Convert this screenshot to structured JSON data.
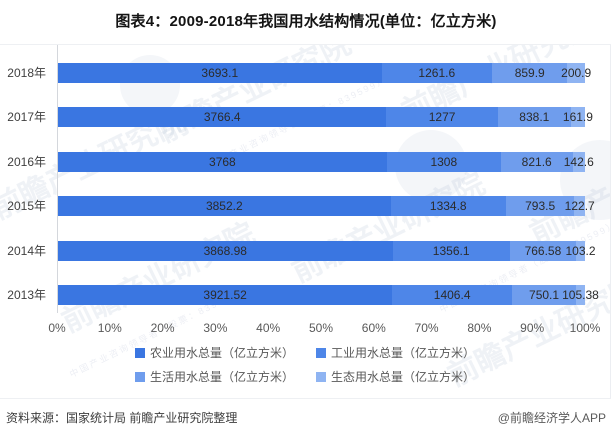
{
  "title": "图表4：2009-2018年我国用水结构情况(单位：亿立方米)",
  "chart_data": {
    "type": "bar",
    "orientation": "horizontal",
    "stacked": true,
    "percent_stacked": true,
    "unit": "亿立方米",
    "categories": [
      "2018年",
      "2017年",
      "2016年",
      "2015年",
      "2014年",
      "2013年"
    ],
    "series": [
      {
        "name": "农业用水总量（亿立方米）",
        "color": "#3a76e1",
        "values": [
          3693.1,
          3766.4,
          3768,
          3852.2,
          3868.98,
          3921.52
        ]
      },
      {
        "name": "工业用水总量（亿立方米）",
        "color": "#4e86e8",
        "values": [
          1261.6,
          1277,
          1308,
          1334.8,
          1356.1,
          1406.4
        ]
      },
      {
        "name": "生活用水总量（亿立方米）",
        "color": "#6f9ded",
        "values": [
          859.9,
          838.1,
          821.6,
          793.5,
          766.58,
          750.1
        ]
      },
      {
        "name": "生态用水总量（亿立方米）",
        "color": "#8fb4f2",
        "values": [
          200.9,
          161.9,
          142.6,
          122.7,
          103.2,
          105.38
        ]
      }
    ],
    "x_ticks": [
      "0%",
      "10%",
      "20%",
      "30%",
      "40%",
      "50%",
      "60%",
      "70%",
      "80%",
      "90%",
      "100%"
    ],
    "x_range": [
      0,
      100
    ],
    "grid": false,
    "legend_position": "bottom",
    "value_labels": "inside-center"
  },
  "watermark": {
    "main": "前瞻产业研究院",
    "sub": "中国产业咨询领导者（股票：839599）"
  },
  "footer": {
    "source": "资料来源：国家统计局 前瞻产业研究院整理",
    "credit": "@前瞻经济学人APP"
  }
}
